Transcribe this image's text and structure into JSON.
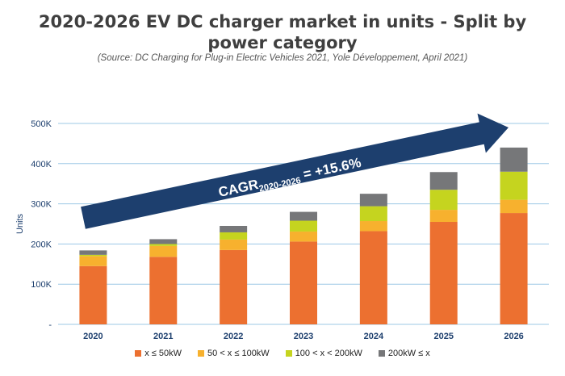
{
  "header": {
    "title_line1": "2020-2026 EV DC charger market in units - Split by",
    "title_line2": "power category",
    "source": "(Source: DC Charging for Plug-in Electric Vehicles 2021, Yole Développement, April 2021)"
  },
  "annotation": {
    "cagr_prefix": "CAGR",
    "cagr_subscript": "2020-2026",
    "cagr_value": " = +15.6%"
  },
  "colors": {
    "arrow": "#1d3f6e",
    "grid": "#9dc8e6",
    "axis_text": "#1d3f6e"
  },
  "chart_data": {
    "type": "bar",
    "stacked": true,
    "categories": [
      "2020",
      "2021",
      "2022",
      "2023",
      "2024",
      "2025",
      "2026"
    ],
    "ylabel": "Units",
    "ylim": [
      0,
      500000
    ],
    "yticks": [
      {
        "value": 0,
        "label": "-"
      },
      {
        "value": 100000,
        "label": "100K"
      },
      {
        "value": 200000,
        "label": "200K"
      },
      {
        "value": 300000,
        "label": "300K"
      },
      {
        "value": 400000,
        "label": "400K"
      },
      {
        "value": 500000,
        "label": "500K"
      }
    ],
    "grid": true,
    "legend_position": "bottom",
    "series": [
      {
        "name": "x ≤ 50kW",
        "color": "#ec7030",
        "values": [
          145000,
          168000,
          185000,
          206000,
          232000,
          255000,
          277000
        ]
      },
      {
        "name": "50 < x ≤ 100kW",
        "color": "#f7b12e",
        "values": [
          25000,
          27000,
          26000,
          25000,
          25000,
          30000,
          33000
        ]
      },
      {
        "name": "100 < x < 200kW",
        "color": "#c5d41f",
        "values": [
          3000,
          5000,
          18000,
          27000,
          37000,
          50000,
          70000
        ]
      },
      {
        "name": "200kW ≤ x",
        "color": "#767779",
        "values": [
          11000,
          12000,
          16000,
          22000,
          31000,
          44000,
          60000
        ]
      }
    ]
  }
}
